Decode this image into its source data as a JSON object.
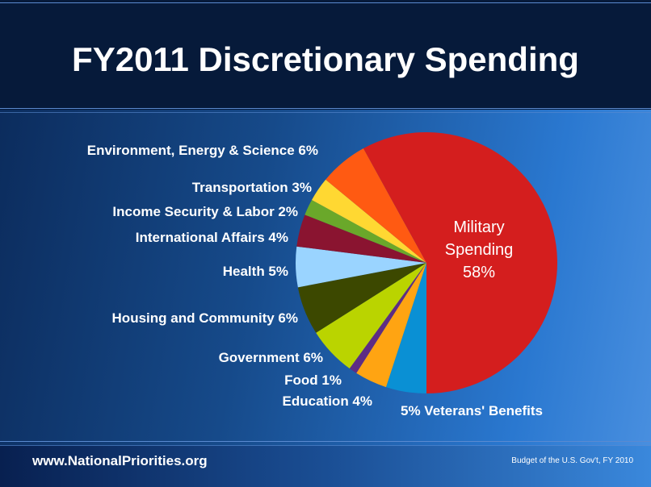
{
  "title": "FY2011 Discretionary Spending",
  "footer": {
    "site": "www.NationalPriorities.org",
    "source": "Budget of the U.S. Gov't, FY 2010"
  },
  "chart_data": {
    "type": "pie",
    "title": "FY2011 Discretionary Spending",
    "start": "bottom, clockwise",
    "slices": [
      {
        "label": "Veterans' Benefits",
        "value": 5,
        "text": "5%  Veterans' Benefits",
        "color": "#0a90d4"
      },
      {
        "label": "Education",
        "value": 4,
        "text": "Education  4%",
        "color": "#ffa412"
      },
      {
        "label": "Food",
        "value": 1,
        "text": "Food  1%",
        "color": "#5e2c84"
      },
      {
        "label": "Government",
        "value": 6,
        "text": "Government  6%",
        "color": "#bad400"
      },
      {
        "label": "Housing and Community",
        "value": 6,
        "text": "Housing and Community  6%",
        "color": "#3c4800"
      },
      {
        "label": "Health",
        "value": 5,
        "text": "Health  5%",
        "color": "#9ad4ff"
      },
      {
        "label": "International Affairs",
        "value": 4,
        "text": "International Affairs  4%",
        "color": "#8a1430"
      },
      {
        "label": "Income Security & Labor",
        "value": 2,
        "text": "Income Security & Labor  2%",
        "color": "#6aa82a"
      },
      {
        "label": "Transportation",
        "value": 3,
        "text": "Transportation  3%",
        "color": "#ffd832"
      },
      {
        "label": "Environment, Energy & Science",
        "value": 6,
        "text": "Environment, Energy & Science  6%",
        "color": "#ff5a12"
      },
      {
        "label": "Military Spending",
        "value": 58,
        "text": "58%",
        "color": "#d41e1e"
      }
    ],
    "military_label": [
      "Military",
      "Spending",
      "58%"
    ]
  }
}
